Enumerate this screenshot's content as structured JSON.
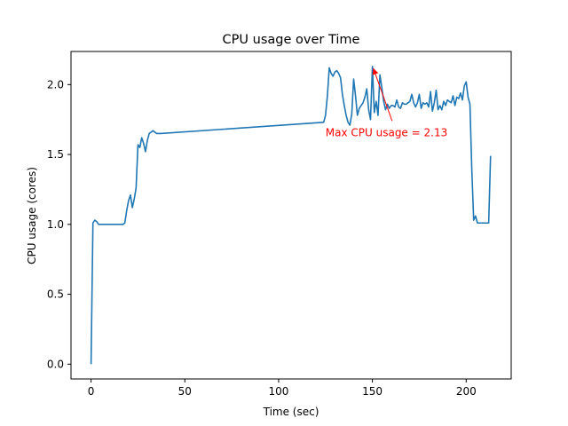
{
  "chart_data": {
    "type": "line",
    "title": "CPU usage over Time",
    "xlabel": "Time (sec)",
    "ylabel": "CPU usage (cores)",
    "xlim": [
      -10.7,
      224
    ],
    "ylim": [
      -0.106,
      2.237
    ],
    "xticks": [
      0,
      50,
      100,
      150,
      200
    ],
    "yticks": [
      0.0,
      0.5,
      1.0,
      1.5,
      2.0
    ],
    "xtick_labels": [
      "0",
      "50",
      "100",
      "150",
      "200"
    ],
    "ytick_labels": [
      "0.0",
      "0.5",
      "1.0",
      "1.5",
      "2.0"
    ],
    "grid": false,
    "line_color": "#1f77b4",
    "series": [
      {
        "x": [
          0,
          1,
          2,
          3,
          4,
          6,
          8,
          10,
          12,
          14,
          16,
          17,
          18,
          19,
          20,
          21,
          22,
          23,
          24,
          25,
          26,
          27,
          28,
          29,
          30,
          31,
          32,
          33,
          34,
          35,
          36,
          37,
          124,
          125,
          126,
          127,
          128,
          129,
          130,
          131,
          132,
          133,
          134,
          135,
          136,
          137,
          138,
          139,
          140,
          141,
          142,
          143,
          144,
          145,
          146,
          147,
          148,
          149,
          150,
          151,
          152,
          153,
          154,
          155,
          156,
          157,
          158,
          159,
          160,
          161,
          162,
          163,
          164,
          165,
          166,
          167,
          168,
          169,
          170,
          171,
          172,
          173,
          174,
          175,
          176,
          177,
          178,
          179,
          180,
          181,
          182,
          183,
          184,
          185,
          186,
          187,
          188,
          189,
          190,
          191,
          192,
          193,
          194,
          195,
          196,
          197,
          198,
          199,
          200,
          201,
          202,
          203,
          204,
          205,
          206,
          207,
          208,
          209,
          210,
          211,
          212,
          213
        ],
        "y": [
          0.0,
          1.01,
          1.03,
          1.02,
          1.0,
          1.0,
          1.0,
          1.0,
          1.0,
          1.0,
          1.0,
          1.0,
          1.01,
          1.1,
          1.17,
          1.21,
          1.12,
          1.18,
          1.26,
          1.57,
          1.55,
          1.62,
          1.58,
          1.52,
          1.6,
          1.65,
          1.66,
          1.67,
          1.66,
          1.65,
          1.65,
          1.65,
          1.73,
          1.78,
          1.92,
          2.12,
          2.08,
          2.06,
          2.09,
          2.1,
          2.08,
          2.05,
          1.93,
          1.85,
          1.78,
          1.73,
          1.71,
          1.79,
          2.04,
          1.92,
          1.78,
          1.83,
          1.85,
          1.87,
          1.91,
          1.97,
          1.82,
          1.75,
          2.13,
          1.8,
          1.88,
          1.78,
          2.07,
          1.98,
          1.88,
          1.82,
          1.86,
          1.83,
          1.85,
          1.85,
          1.84,
          1.89,
          1.84,
          1.83,
          1.87,
          1.86,
          1.86,
          1.87,
          1.88,
          1.93,
          1.87,
          1.84,
          1.87,
          1.93,
          1.83,
          1.87,
          1.86,
          1.87,
          1.84,
          1.95,
          1.81,
          1.87,
          1.96,
          1.82,
          1.85,
          1.82,
          1.88,
          1.85,
          1.89,
          1.88,
          1.87,
          1.92,
          1.85,
          1.91,
          1.9,
          1.94,
          1.89,
          1.99,
          2.02,
          1.91,
          1.86,
          1.39,
          1.03,
          1.06,
          1.01,
          1.01,
          1.01,
          1.01,
          1.01,
          1.01,
          1.01,
          1.49
        ]
      }
    ],
    "annotation": {
      "text": "Max CPU usage = 2.13",
      "color": "#ff0000",
      "point": [
        150,
        2.13
      ],
      "text_anchor_data": [
        125,
        1.63
      ]
    }
  }
}
